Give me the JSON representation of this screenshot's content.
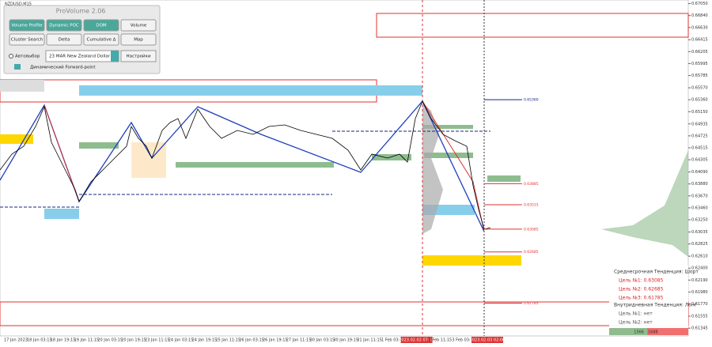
{
  "symbol": "NZDUSD,M15",
  "panel": {
    "title": "ProVolume 2.06",
    "buttons": [
      "Volume Profile",
      "Dynamic POC",
      "DOM",
      "Volume",
      "Cluster Search",
      "Delta",
      "Cumulative Δ",
      "Map"
    ],
    "auto_label": "Автовыбор",
    "instrument": "23 MAR New Zealand Dollar",
    "settings": "Настройки",
    "forward_point": "Динамический Forward-point"
  },
  "price_axis": {
    "ylim": [
      0.61208,
      0.67113
    ],
    "ticks": [
      {
        "value": 0.6705,
        "label": "0.67050"
      },
      {
        "value": 0.6684,
        "label": "0.66840"
      },
      {
        "value": 0.6663,
        "label": "0.66630"
      },
      {
        "value": 0.66415,
        "label": "0.66415"
      },
      {
        "value": 0.66205,
        "label": "0.66205"
      },
      {
        "value": 0.65995,
        "label": "0.65995"
      },
      {
        "value": 0.65785,
        "label": "0.65785"
      },
      {
        "value": 0.6557,
        "label": "0.65570"
      },
      {
        "value": 0.6536,
        "label": "0.65360"
      },
      {
        "value": 0.6515,
        "label": "0.65150"
      },
      {
        "value": 0.64935,
        "label": "0.64935"
      },
      {
        "value": 0.64725,
        "label": "0.64725"
      },
      {
        "value": 0.64515,
        "label": "0.64515"
      },
      {
        "value": 0.64305,
        "label": "0.64305"
      },
      {
        "value": 0.6409,
        "label": "0.64090"
      },
      {
        "value": 0.6388,
        "label": "0.63880"
      },
      {
        "value": 0.6367,
        "label": "0.63670"
      },
      {
        "value": 0.6346,
        "label": "0.63460"
      },
      {
        "value": 0.6325,
        "label": "0.63250"
      },
      {
        "value": 0.63035,
        "label": "0.63035"
      },
      {
        "value": 0.62825,
        "label": "0.62825"
      },
      {
        "value": 0.6261,
        "label": "0.62610"
      },
      {
        "value": 0.624,
        "label": "0.62400"
      },
      {
        "value": 0.6219,
        "label": "0.62190"
      },
      {
        "value": 0.6198,
        "label": "0.61980"
      },
      {
        "value": 0.6177,
        "label": "0.61770"
      },
      {
        "value": 0.61555,
        "label": "0.61555"
      },
      {
        "value": 0.61345,
        "label": "0.61345"
      }
    ]
  },
  "levels": [
    {
      "value": 0.6536,
      "label": "0.65360"
    },
    {
      "value": 0.63885,
      "label": "0.63885"
    },
    {
      "value": 0.63515,
      "label": "0.63515"
    },
    {
      "value": 0.63085,
      "label": "0.63085"
    },
    {
      "value": 0.62685,
      "label": "0.62685"
    },
    {
      "value": 0.61785,
      "label": "0.61785"
    }
  ],
  "dates": [
    "17 Jan 2023",
    "18 Jan 03:15",
    "18 Jan 19:15",
    "19 Jan 11:15",
    "20 Jan 03:15",
    "20 Jan 19:15",
    "23 Jan 11:15",
    "24 Jan 03:15",
    "24 Jan 19:15",
    "25 Jan 11:15",
    "26 Jan 03:15",
    "26 Jan 19:15",
    "27 Jan 11:15",
    "30 Jan 03:15",
    "30 Jan 19:15",
    "31 Jan 11:15",
    "1 Feb 03:15",
    "2023.02.02 07:15",
    "2 Feb 11:15",
    "3 Feb 03:15",
    "2023.02.03 02:00"
  ],
  "info": {
    "medium_trend": "Среднесрочная Тенденция: Шорт",
    "medium_targets": [
      "Цель №1: 0.63085",
      "Цель №2: 0.62685",
      "Цель №3: 0.61785"
    ],
    "intraday_trend": "Внутридневная Тенденция: Лонг",
    "intraday_targets": [
      "Цель №1: нет",
      "Цель №2: нет"
    ]
  },
  "volume_counter": [
    "1566",
    "1688"
  ]
}
